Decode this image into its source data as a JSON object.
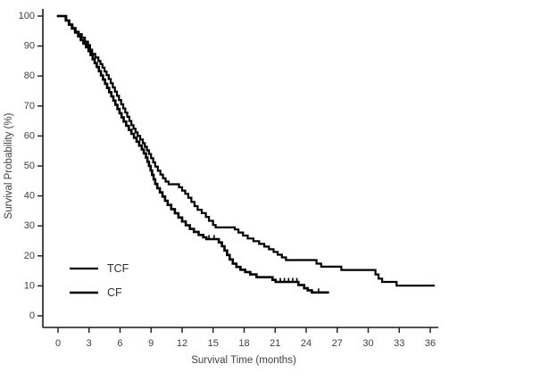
{
  "chart_data": {
    "type": "line",
    "subtype": "kaplan-meier-step",
    "title": "",
    "xlabel": "Survival Time (months)",
    "ylabel": "Survival Probability (%)",
    "xlim": [
      0,
      36
    ],
    "ylim": [
      0,
      100
    ],
    "x_ticks": [
      0,
      3,
      6,
      9,
      12,
      15,
      18,
      21,
      24,
      27,
      30,
      33,
      36
    ],
    "y_ticks": [
      0,
      10,
      20,
      30,
      40,
      50,
      60,
      70,
      80,
      90,
      100
    ],
    "grid": false,
    "legend_position": "lower-left-inside",
    "axis_color": "#1a1a1a",
    "text_color": "#3f3f3f",
    "background_color": "#ffffff",
    "series": [
      {
        "name": "TCF",
        "color": "#000000",
        "stroke_width": 2.2,
        "points": [
          [
            0,
            100
          ],
          [
            0.55,
            100
          ],
          [
            0.8,
            98.5
          ],
          [
            1.1,
            97.2
          ],
          [
            1.4,
            96.0
          ],
          [
            1.7,
            94.8
          ],
          [
            2.0,
            94.0
          ],
          [
            2.3,
            92.8
          ],
          [
            2.6,
            91.5
          ],
          [
            2.9,
            90.3
          ],
          [
            3.1,
            88.8
          ],
          [
            3.3,
            87.4
          ],
          [
            3.6,
            86.2
          ],
          [
            3.9,
            85.0
          ],
          [
            4.1,
            84.0
          ],
          [
            4.3,
            82.8
          ],
          [
            4.5,
            81.5
          ],
          [
            4.7,
            80.3
          ],
          [
            4.9,
            79.0
          ],
          [
            5.1,
            77.6
          ],
          [
            5.3,
            76.2
          ],
          [
            5.5,
            74.8
          ],
          [
            5.7,
            73.4
          ],
          [
            5.9,
            72.0
          ],
          [
            6.1,
            70.6
          ],
          [
            6.3,
            69.2
          ],
          [
            6.5,
            67.8
          ],
          [
            6.7,
            66.4
          ],
          [
            6.9,
            65.0
          ],
          [
            7.1,
            63.6
          ],
          [
            7.3,
            62.4
          ],
          [
            7.5,
            61.2
          ],
          [
            7.7,
            60.0
          ],
          [
            7.95,
            58.8
          ],
          [
            8.2,
            57.6
          ],
          [
            8.4,
            56.4
          ],
          [
            8.6,
            55.2
          ],
          [
            8.8,
            54.0
          ],
          [
            9.0,
            52.6
          ],
          [
            9.2,
            51.2
          ],
          [
            9.4,
            49.8
          ],
          [
            9.65,
            48.4
          ],
          [
            9.9,
            47.1
          ],
          [
            10.15,
            45.9
          ],
          [
            10.4,
            44.8
          ],
          [
            10.7,
            43.9
          ],
          [
            11.7,
            42.9
          ],
          [
            12.0,
            41.8
          ],
          [
            12.3,
            40.7
          ],
          [
            12.6,
            39.4
          ],
          [
            12.9,
            38.0
          ],
          [
            13.2,
            36.6
          ],
          [
            13.5,
            35.4
          ],
          [
            13.9,
            34.3
          ],
          [
            14.3,
            33.0
          ],
          [
            14.6,
            31.7
          ],
          [
            15.0,
            30.3
          ],
          [
            15.25,
            29.5
          ],
          [
            17.1,
            28.8
          ],
          [
            17.45,
            27.8
          ],
          [
            17.9,
            26.8
          ],
          [
            18.35,
            25.8
          ],
          [
            18.9,
            24.9
          ],
          [
            19.45,
            24.0
          ],
          [
            19.95,
            23.1
          ],
          [
            20.4,
            22.2
          ],
          [
            20.85,
            21.3
          ],
          [
            21.25,
            20.4
          ],
          [
            21.65,
            19.5
          ],
          [
            22.05,
            18.6
          ],
          [
            25.0,
            17.4
          ],
          [
            25.45,
            16.4
          ],
          [
            27.4,
            15.3
          ],
          [
            30.7,
            13.8
          ],
          [
            31.0,
            12.4
          ],
          [
            31.35,
            11.3
          ],
          [
            32.75,
            10.1
          ],
          [
            36.35,
            10.1
          ]
        ],
        "censor_marks": []
      },
      {
        "name": "CF",
        "color": "#000000",
        "stroke_width": 2.6,
        "points": [
          [
            0,
            100
          ],
          [
            0.5,
            100
          ],
          [
            0.75,
            98.5
          ],
          [
            1.05,
            97.1
          ],
          [
            1.35,
            95.8
          ],
          [
            1.65,
            94.5
          ],
          [
            1.95,
            93.2
          ],
          [
            2.2,
            92.0
          ],
          [
            2.45,
            90.8
          ],
          [
            2.7,
            89.6
          ],
          [
            2.95,
            88.3
          ],
          [
            3.15,
            87.0
          ],
          [
            3.35,
            85.6
          ],
          [
            3.55,
            84.3
          ],
          [
            3.75,
            83.0
          ],
          [
            3.95,
            81.6
          ],
          [
            4.15,
            80.2
          ],
          [
            4.35,
            78.8
          ],
          [
            4.55,
            77.4
          ],
          [
            4.75,
            76.0
          ],
          [
            4.95,
            74.6
          ],
          [
            5.15,
            73.2
          ],
          [
            5.35,
            71.8
          ],
          [
            5.55,
            70.4
          ],
          [
            5.75,
            69.0
          ],
          [
            5.95,
            67.6
          ],
          [
            6.15,
            66.2
          ],
          [
            6.35,
            64.8
          ],
          [
            6.6,
            63.4
          ],
          [
            6.85,
            62.0
          ],
          [
            7.1,
            60.7
          ],
          [
            7.35,
            59.4
          ],
          [
            7.6,
            58.1
          ],
          [
            7.85,
            56.8
          ],
          [
            8.1,
            55.5
          ],
          [
            8.3,
            54.2
          ],
          [
            8.5,
            52.8
          ],
          [
            8.65,
            51.4
          ],
          [
            8.8,
            50.0
          ],
          [
            8.95,
            48.5
          ],
          [
            9.1,
            47.0
          ],
          [
            9.25,
            45.5
          ],
          [
            9.4,
            44.0
          ],
          [
            9.6,
            42.6
          ],
          [
            9.85,
            41.2
          ],
          [
            10.1,
            39.8
          ],
          [
            10.35,
            38.4
          ],
          [
            10.6,
            37.0
          ],
          [
            10.95,
            35.6
          ],
          [
            11.3,
            34.2
          ],
          [
            11.65,
            32.8
          ],
          [
            12.0,
            31.5
          ],
          [
            12.35,
            30.2
          ],
          [
            12.75,
            29.0
          ],
          [
            13.15,
            28.0
          ],
          [
            13.6,
            27.0
          ],
          [
            14.05,
            26.2
          ],
          [
            14.35,
            25.6
          ],
          [
            15.55,
            24.5
          ],
          [
            15.85,
            23.2
          ],
          [
            16.1,
            21.8
          ],
          [
            16.35,
            20.3
          ],
          [
            16.6,
            18.8
          ],
          [
            16.9,
            17.4
          ],
          [
            17.25,
            16.3
          ],
          [
            17.65,
            15.4
          ],
          [
            18.1,
            14.6
          ],
          [
            18.6,
            13.8
          ],
          [
            19.2,
            12.9
          ],
          [
            20.75,
            12.0
          ],
          [
            21.05,
            11.3
          ],
          [
            23.25,
            10.3
          ],
          [
            23.8,
            9.2
          ],
          [
            24.15,
            8.5
          ],
          [
            24.55,
            7.8
          ],
          [
            26.1,
            7.8
          ]
        ],
        "censor_marks": [
          [
            14.6,
            25.6
          ],
          [
            15.1,
            25.6
          ],
          [
            21.5,
            11.3
          ],
          [
            21.9,
            11.3
          ],
          [
            22.3,
            11.3
          ],
          [
            22.7,
            11.3
          ],
          [
            23.1,
            11.3
          ],
          [
            25.2,
            7.8
          ]
        ]
      }
    ]
  },
  "legend": {
    "items": [
      {
        "label": "TCF"
      },
      {
        "label": "CF"
      }
    ]
  }
}
